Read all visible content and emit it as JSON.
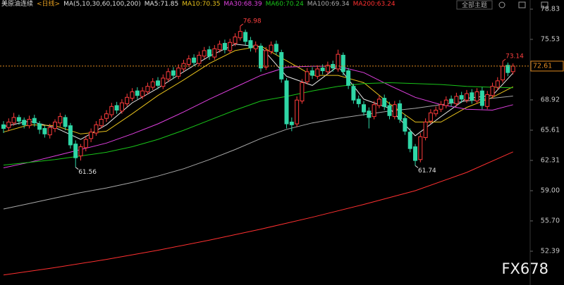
{
  "chart_data": {
    "type": "candlestick",
    "title": "美原油连续",
    "period": "<日线>",
    "indicator": "MA(5,10,30,60,100,200)",
    "open": [
      66.2,
      65.9,
      66.4,
      67.0,
      66.7,
      66.1,
      66.9,
      66.3,
      65.8,
      65.1,
      65.8,
      66.4,
      67.0,
      66.1,
      64.1,
      62.8,
      63.7,
      64.7,
      65.3,
      66.1,
      66.9,
      67.3,
      68.3,
      67.7,
      68.5,
      69.1,
      69.9,
      69.3,
      69.8,
      70.3,
      71.0,
      70.4,
      71.2,
      72.1,
      71.5,
      72.3,
      72.8,
      73.5,
      72.9,
      73.7,
      74.4,
      73.6,
      74.4,
      75.1,
      74.3,
      75.1,
      75.7,
      76.3,
      75.4,
      74.5,
      74.8,
      72.5,
      74.2,
      75.0,
      74.1,
      71.0,
      66.5,
      66.3,
      68.8,
      70.9,
      72.1,
      71.5,
      72.4,
      72.0,
      72.8,
      72.3,
      73.8,
      72.1,
      70.4,
      69.0,
      68.4,
      67.7,
      67.1,
      68.3,
      69.1,
      68.3,
      67.1,
      68.5,
      66.9,
      65.4,
      63.8,
      62.4,
      64.8,
      66.6,
      67.4,
      67.9,
      68.3,
      69.0,
      68.5,
      69.4,
      68.9,
      69.7,
      68.8,
      69.9,
      68.2,
      69.4,
      70.3,
      71.1,
      72.7,
      72.0
    ],
    "high": [
      66.6,
      66.9,
      67.5,
      67.3,
      67.0,
      67.2,
      67.3,
      66.6,
      66.1,
      66.3,
      66.8,
      67.5,
      67.3,
      66.4,
      64.5,
      64.1,
      65.0,
      65.8,
      66.6,
      67.2,
      67.8,
      68.6,
      68.7,
      69.0,
      69.6,
      70.2,
      70.3,
      70.3,
      70.8,
      71.3,
      71.4,
      71.7,
      72.4,
      72.5,
      72.8,
      73.3,
      73.8,
      73.9,
      74.2,
      74.7,
      74.8,
      74.9,
      75.4,
      75.5,
      75.6,
      76.2,
      76.98,
      76.6,
      75.8,
      75.3,
      75.1,
      74.7,
      75.3,
      75.4,
      74.4,
      71.3,
      67.0,
      69.3,
      71.2,
      72.4,
      72.5,
      72.7,
      72.8,
      73.1,
      73.2,
      74.4,
      74.1,
      72.4,
      70.7,
      69.4,
      68.8,
      68.1,
      68.8,
      69.4,
      69.5,
      68.7,
      68.8,
      68.9,
      67.3,
      65.8,
      64.1,
      65.3,
      66.9,
      67.9,
      68.2,
      68.8,
      69.3,
      69.4,
      69.7,
      69.8,
      70.0,
      70.1,
      70.2,
      70.3,
      69.9,
      70.8,
      71.4,
      73.14,
      73.0,
      72.9
    ],
    "low": [
      65.3,
      65.5,
      66.1,
      66.2,
      65.8,
      65.8,
      66.0,
      65.2,
      64.8,
      64.7,
      65.4,
      66.0,
      65.6,
      63.6,
      61.56,
      62.3,
      63.3,
      64.3,
      65.0,
      65.8,
      66.5,
      67.0,
      67.4,
      67.4,
      68.2,
      68.8,
      69.0,
      69.0,
      69.5,
      70.0,
      70.1,
      70.1,
      70.9,
      71.2,
      71.2,
      72.0,
      72.5,
      72.6,
      72.6,
      73.4,
      73.3,
      73.3,
      74.1,
      74.0,
      74.0,
      74.8,
      75.4,
      74.9,
      74.2,
      74.1,
      72.0,
      72.2,
      73.9,
      73.8,
      70.8,
      65.8,
      65.5,
      66.0,
      68.5,
      70.6,
      71.2,
      71.2,
      71.7,
      71.7,
      72.0,
      72.0,
      71.6,
      70.1,
      68.5,
      68.1,
      67.2,
      65.8,
      66.8,
      68.0,
      67.8,
      66.8,
      66.8,
      66.4,
      65.1,
      63.2,
      61.74,
      62.1,
      64.5,
      66.3,
      67.1,
      67.6,
      68.0,
      68.2,
      68.2,
      68.6,
      68.6,
      68.5,
      68.5,
      67.9,
      67.9,
      69.1,
      70.0,
      70.8,
      71.5,
      71.7
    ],
    "close": [
      65.8,
      66.5,
      67.0,
      66.6,
      66.2,
      66.8,
      66.4,
      65.7,
      65.2,
      65.9,
      66.5,
      67.1,
      66.0,
      64.0,
      62.6,
      63.8,
      64.6,
      65.4,
      66.2,
      66.8,
      67.4,
      68.2,
      67.8,
      68.6,
      69.2,
      69.8,
      69.4,
      69.9,
      70.4,
      70.9,
      70.5,
      71.3,
      72.0,
      71.6,
      72.4,
      72.9,
      73.4,
      73.0,
      73.8,
      74.3,
      73.7,
      74.5,
      75.0,
      74.4,
      75.2,
      75.8,
      76.4,
      75.3,
      74.6,
      74.9,
      72.4,
      74.3,
      74.9,
      74.2,
      71.2,
      66.3,
      66.2,
      68.9,
      70.8,
      72.0,
      71.6,
      72.3,
      72.1,
      72.7,
      72.4,
      73.9,
      72.0,
      70.5,
      68.9,
      68.5,
      67.6,
      67.0,
      68.4,
      69.0,
      68.2,
      67.2,
      68.4,
      66.8,
      65.5,
      63.6,
      62.3,
      64.9,
      66.5,
      67.5,
      67.8,
      68.4,
      68.9,
      68.6,
      69.3,
      69.0,
      69.6,
      68.9,
      69.8,
      68.3,
      69.5,
      70.4,
      71.0,
      72.6,
      71.9,
      72.61
    ],
    "up_color": "#ff3b3b",
    "down_color": "#2fd6a6",
    "series": [
      {
        "name": "MA5:71.85",
        "color": "#e6e6e6",
        "x": [
          0,
          5,
          10,
          15,
          20,
          25,
          30,
          35,
          40,
          45,
          50,
          55,
          60,
          65,
          70,
          75,
          80,
          85,
          90,
          95,
          99
        ],
        "values": [
          66.0,
          66.6,
          65.9,
          64.6,
          66.2,
          68.6,
          70.2,
          72.0,
          73.7,
          75.0,
          74.7,
          71.5,
          70.5,
          72.6,
          69.0,
          68.0,
          65.0,
          67.1,
          69.1,
          69.4,
          71.85
        ]
      },
      {
        "name": "MA10:70.35",
        "color": "#e8c21c",
        "x": [
          0,
          5,
          10,
          15,
          20,
          25,
          30,
          35,
          40,
          45,
          50,
          55,
          60,
          65,
          70,
          75,
          80,
          85,
          90,
          95,
          99
        ],
        "values": [
          65.4,
          66.2,
          66.1,
          65.2,
          65.5,
          67.4,
          69.4,
          71.1,
          72.9,
          74.3,
          74.8,
          73.2,
          71.6,
          71.6,
          70.8,
          68.5,
          66.5,
          66.5,
          68.1,
          69.2,
          70.35
        ]
      },
      {
        "name": "MA30:68.39",
        "color": "#e040e0",
        "x": [
          0,
          5,
          10,
          15,
          20,
          25,
          30,
          35,
          40,
          45,
          50,
          55,
          60,
          65,
          70,
          75,
          80,
          85,
          90,
          95,
          99
        ],
        "values": [
          61.5,
          62.1,
          62.8,
          63.5,
          64.2,
          65.2,
          66.3,
          67.6,
          69.0,
          70.3,
          71.6,
          72.5,
          72.6,
          72.6,
          71.9,
          70.5,
          69.2,
          68.4,
          67.9,
          67.8,
          68.39
        ]
      },
      {
        "name": "MA60:70.24",
        "color": "#19c419",
        "x": [
          0,
          5,
          10,
          15,
          20,
          25,
          30,
          35,
          40,
          45,
          50,
          55,
          60,
          65,
          70,
          75,
          80,
          85,
          90,
          95,
          99
        ],
        "values": [
          61.8,
          62.1,
          62.4,
          62.8,
          63.2,
          63.8,
          64.6,
          65.6,
          66.7,
          67.8,
          68.8,
          69.3,
          69.9,
          70.4,
          70.7,
          70.8,
          70.7,
          70.6,
          70.4,
          70.3,
          70.24
        ]
      },
      {
        "name": "MA100:69.34",
        "color": "#a8a8a8",
        "x": [
          0,
          5,
          10,
          15,
          20,
          25,
          30,
          35,
          40,
          45,
          50,
          55,
          60,
          65,
          70,
          75,
          80,
          85,
          90,
          95,
          99
        ],
        "values": [
          57.0,
          57.6,
          58.2,
          58.8,
          59.3,
          59.9,
          60.6,
          61.4,
          62.4,
          63.5,
          64.7,
          65.7,
          66.4,
          66.9,
          67.3,
          67.7,
          68.0,
          68.4,
          68.8,
          69.1,
          69.34
        ]
      },
      {
        "name": "MA200:63.24",
        "color": "#ff3030",
        "x": [
          0,
          10,
          20,
          30,
          40,
          50,
          60,
          70,
          80,
          90,
          99
        ],
        "values": [
          49.8,
          50.6,
          51.5,
          52.5,
          53.6,
          54.8,
          56.1,
          57.5,
          59.0,
          61.0,
          63.24
        ]
      }
    ],
    "ylim": [
      48.7,
      79.83
    ],
    "yticks": [
      78.83,
      75.53,
      68.92,
      65.61,
      62.31,
      {
        "value": 59,
        "label": "59.00"
      },
      {
        "value": 55.7,
        "label": "55.70"
      },
      52.39
    ],
    "last_price": 72.61,
    "annotations": [
      {
        "x": 46,
        "value": 76.98,
        "color": "#ff4040",
        "kind": "high"
      },
      {
        "x": 14,
        "value": 61.56,
        "color": "#e0e0e0",
        "kind": "low"
      },
      {
        "x": 80,
        "value": 61.74,
        "color": "#e0e0e0",
        "kind": "low"
      },
      {
        "x": 97,
        "value": 73.14,
        "color": "#ff4040",
        "kind": "high"
      }
    ]
  },
  "ui": {
    "theme_button": "全部主题",
    "watermark": "FX678"
  }
}
